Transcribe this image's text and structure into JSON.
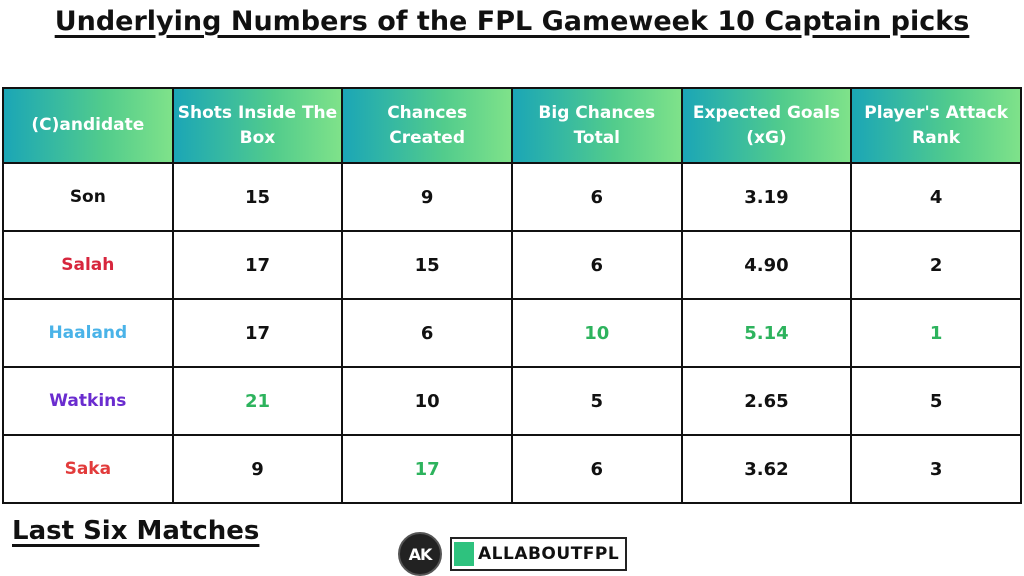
{
  "title": "Underlying Numbers of the FPL Gameweek 10 Captain picks",
  "footer_label": "Last Six Matches",
  "logo": {
    "monogram": "AK",
    "brand": "ALLABOUTFPL"
  },
  "colors": {
    "header_gradient_start": "#1ba6b6",
    "header_gradient_end": "#7fe28a",
    "highlight": "#2db35d"
  },
  "chart_data": {
    "type": "table",
    "columns": [
      "(C)andidate",
      "Shots Inside The Box",
      "Chances Created",
      "Big Chances Total",
      "Expected Goals (xG)",
      "Player's Attack Rank"
    ],
    "rows": [
      {
        "name": "Son",
        "name_color": "#111111",
        "values": [
          "15",
          "9",
          "6",
          "3.19",
          "4"
        ],
        "highlight": [
          false,
          false,
          false,
          false,
          false
        ]
      },
      {
        "name": "Salah",
        "name_color": "#d7263d",
        "values": [
          "17",
          "15",
          "6",
          "4.90",
          "2"
        ],
        "highlight": [
          false,
          false,
          false,
          false,
          false
        ]
      },
      {
        "name": "Haaland",
        "name_color": "#4ab3e8",
        "values": [
          "17",
          "6",
          "10",
          "5.14",
          "1"
        ],
        "highlight": [
          false,
          false,
          true,
          true,
          true
        ]
      },
      {
        "name": "Watkins",
        "name_color": "#6a2ccf",
        "values": [
          "21",
          "10",
          "5",
          "2.65",
          "5"
        ],
        "highlight": [
          true,
          false,
          false,
          false,
          false
        ]
      },
      {
        "name": "Saka",
        "name_color": "#e23b3b",
        "values": [
          "9",
          "17",
          "6",
          "3.62",
          "3"
        ],
        "highlight": [
          false,
          true,
          false,
          false,
          false
        ]
      }
    ]
  }
}
